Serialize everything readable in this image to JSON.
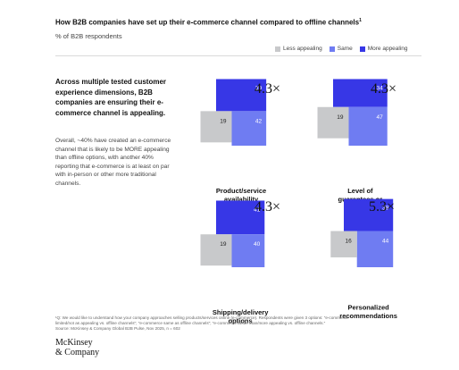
{
  "title": "How B2B companies have set up their e-commerce channel compared to offline channels",
  "title_note": "1",
  "subtitle": "% of B2B respondents",
  "legend": [
    {
      "label": "Less appealing",
      "color": "#c8c9cb"
    },
    {
      "label": "Same",
      "color": "#6f7cf2"
    },
    {
      "label": "More appealing",
      "color": "#3737e6"
    }
  ],
  "insight": "Across multiple tested customer experience dimensions, B2B companies are ensuring their e-commerce channel is appealing.",
  "body": "Overall, ~40% have created an e-commerce channel that is likely to be MORE appealing than offline options, with another 40% reporting that e-commerce is at least on par with in-person or other more traditional channels.",
  "chart_data": [
    {
      "type": "bar",
      "category": "Product/service availability",
      "less_appealing": 19,
      "same": 42,
      "more_appealing": 39,
      "multiplier": "4.3×"
    },
    {
      "type": "bar",
      "category": "Level of guarantees or warrantee",
      "less_appealing": 19,
      "same": 47,
      "more_appealing": 34,
      "multiplier": "4.3×"
    },
    {
      "type": "bar",
      "category": "Shipping/delivery options",
      "less_appealing": 19,
      "same": 40,
      "more_appealing": 41,
      "multiplier": "4.3×"
    },
    {
      "type": "bar",
      "category": "Personalized recommendations",
      "less_appealing": 16,
      "same": 44,
      "more_appealing": 39,
      "multiplier": "5.3×"
    }
  ],
  "footnote": {
    "line1": "¹Q: We would like to understand how your company approaches selling products/services online (e-commerce). Respondents were given 3 options: \"e-commerce",
    "line2": "limited/not as appealing vs. offline channels\"; \"e-commerce same as offline channels\"; \"e-commerce better than/more appealing vs. offline channels.\"",
    "line3": "Source: McKinsey & Company Global B2B Pulse, Nov 2025, n = 602"
  },
  "logo": {
    "line1": "McKinsey",
    "line2": "& Company"
  }
}
